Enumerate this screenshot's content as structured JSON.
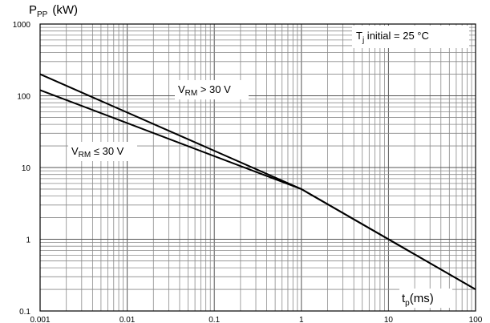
{
  "chart_data": {
    "type": "line",
    "title": "",
    "ylabel": {
      "main": "P",
      "sub": "PP",
      "unit": "(kW)"
    },
    "xlabel": {
      "main": "t",
      "sub": "p",
      "unit": "(ms)"
    },
    "x_scale": "log",
    "y_scale": "log",
    "xlim": [
      0.001,
      100
    ],
    "ylim": [
      0.1,
      1000
    ],
    "grid": true,
    "x_ticks": [
      "0.001",
      "0.01",
      "0.1",
      "1",
      "10",
      "100"
    ],
    "y_ticks": [
      "0.1",
      "1",
      "10",
      "100",
      "1000"
    ],
    "annotation": {
      "main": "T",
      "sub": "j",
      "rest": " initial = 25 °C"
    },
    "series": [
      {
        "name_main": "V",
        "name_sub": "RM",
        "name_rest": " > 30 V",
        "points": [
          [
            0.001,
            200
          ],
          [
            1,
            5
          ],
          [
            100,
            0.2
          ]
        ]
      },
      {
        "name_main": "V",
        "name_sub": "RM",
        "name_rest": " ≤ 30 V",
        "points": [
          [
            0.001,
            120
          ],
          [
            1,
            5
          ],
          [
            100,
            0.2
          ]
        ]
      }
    ]
  }
}
